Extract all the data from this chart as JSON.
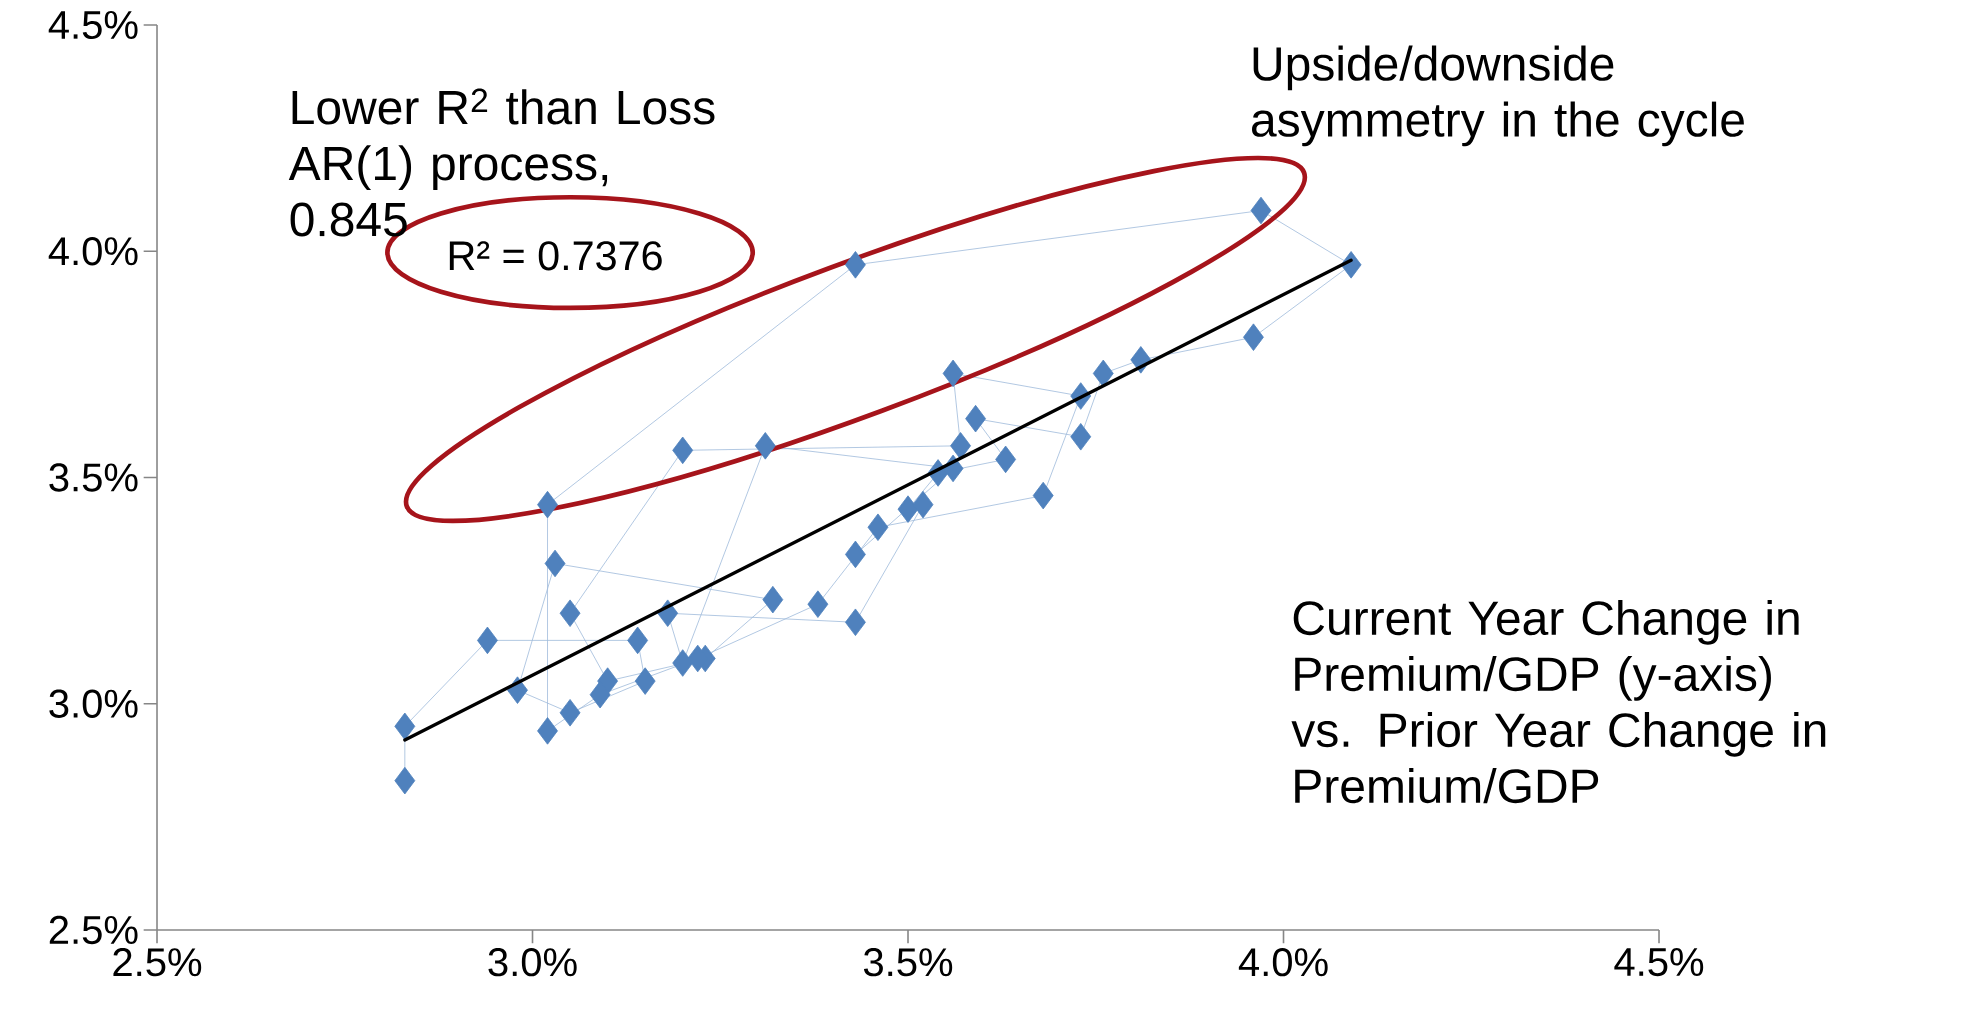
{
  "chart_data": {
    "type": "line",
    "xlim": [
      2.5,
      4.5
    ],
    "ylim": [
      2.5,
      4.5
    ],
    "xticks": [
      {
        "value": 2.5,
        "label": "2.5%"
      },
      {
        "value": 3.0,
        "label": "3.0%"
      },
      {
        "value": 3.5,
        "label": "3.5%"
      },
      {
        "value": 4.0,
        "label": "4.0%"
      },
      {
        "value": 4.5,
        "label": "4.5%"
      }
    ],
    "yticks": [
      {
        "value": 2.5,
        "label": "2.5%"
      },
      {
        "value": 3.0,
        "label": "3.0%"
      },
      {
        "value": 3.5,
        "label": "3.5%"
      },
      {
        "value": 4.0,
        "label": "4.0%"
      },
      {
        "value": 4.5,
        "label": "4.5%"
      }
    ],
    "grid": false,
    "series": [
      {
        "type": "line",
        "marker": "diamond",
        "color": "#4f81bd",
        "x": [
          2.83,
          2.83,
          2.94,
          3.14,
          3.15,
          3.05,
          2.98,
          3.03,
          3.32,
          3.23,
          3.1,
          3.05,
          3.2,
          3.57,
          3.56,
          3.73,
          3.68,
          3.46,
          3.38,
          3.22,
          3.09,
          3.02,
          3.02,
          3.43,
          3.97,
          4.09,
          3.96,
          3.81,
          3.76,
          3.73,
          3.59,
          3.63,
          3.54,
          3.5,
          3.52,
          3.43,
          3.18,
          3.2,
          3.31,
          3.56,
          3.43
        ],
        "values": [
          2.83,
          2.95,
          3.14,
          3.14,
          3.05,
          2.98,
          3.03,
          3.31,
          3.23,
          3.1,
          3.05,
          3.2,
          3.56,
          3.57,
          3.73,
          3.68,
          3.46,
          3.39,
          3.22,
          3.1,
          3.02,
          2.94,
          3.44,
          3.97,
          4.09,
          3.97,
          3.81,
          3.76,
          3.73,
          3.59,
          3.63,
          3.54,
          3.51,
          3.43,
          3.44,
          3.18,
          3.2,
          3.09,
          3.57,
          3.52,
          3.33
        ]
      },
      {
        "type": "line",
        "marker": "none",
        "color": "#000000",
        "x": [
          2.83,
          4.09
        ],
        "values": [
          2.92,
          3.98
        ]
      }
    ],
    "annotations": [
      "Lower R$^{2}$ than Loss AR(1) process, 0.845",
      "R² = 0.7376",
      "Upside/downside asymmetry in the cycle",
      "Current Year Change in Premium/GDP (y-axis) vs. Prior Year Change in Premium/GDP"
    ]
  }
}
